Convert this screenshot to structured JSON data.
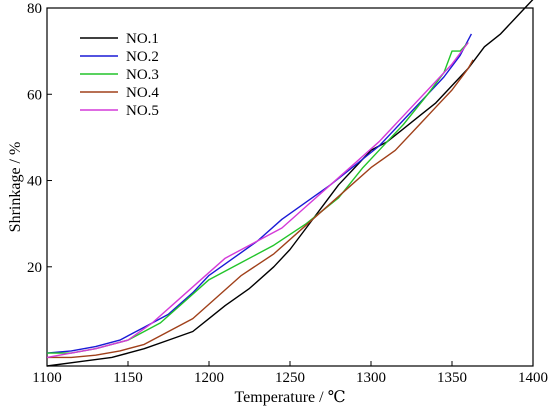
{
  "chart_data": {
    "type": "line",
    "xlabel": "Temperature / ℃",
    "ylabel": "Shrinkage / %",
    "xlim": [
      1100,
      1400
    ],
    "ylim": [
      -3,
      80
    ],
    "xticks": [
      1100,
      1150,
      1200,
      1250,
      1300,
      1350,
      1400
    ],
    "yticks": [
      20,
      40,
      60,
      80
    ],
    "legend_position": "top-left",
    "grid": false,
    "series": [
      {
        "name": "NO.1",
        "color": "#000000",
        "x": [
          1100,
          1120,
          1140,
          1150,
          1160,
          1175,
          1190,
          1200,
          1210,
          1225,
          1240,
          1250,
          1260,
          1270,
          1280,
          1290,
          1300,
          1310,
          1320,
          1330,
          1340,
          1350,
          1360,
          1370,
          1380,
          1390,
          1395,
          1400
        ],
        "y": [
          -3,
          -2,
          -1,
          0,
          1,
          3,
          5,
          8,
          11,
          15,
          20,
          24,
          29,
          34,
          39,
          43,
          47,
          49,
          52,
          55,
          58,
          62,
          66,
          71,
          74,
          78,
          80,
          82
        ]
      },
      {
        "name": "NO.2",
        "color": "#1a1ad6",
        "x": [
          1100,
          1115,
          1130,
          1145,
          1160,
          1175,
          1190,
          1200,
          1215,
          1230,
          1245,
          1260,
          1275,
          1285,
          1295,
          1305,
          1315,
          1325,
          1335,
          1345,
          1355,
          1362
        ],
        "y": [
          0,
          0.5,
          1.5,
          3,
          6,
          9,
          14,
          18,
          22,
          26,
          31,
          35,
          39,
          42,
          45,
          48,
          52,
          56,
          60,
          64,
          69,
          74
        ]
      },
      {
        "name": "NO.3",
        "color": "#22c42a",
        "x": [
          1100,
          1115,
          1130,
          1150,
          1170,
          1185,
          1200,
          1220,
          1240,
          1260,
          1280,
          1295,
          1305,
          1320,
          1335,
          1345,
          1350,
          1355,
          1360
        ],
        "y": [
          0,
          0,
          1,
          3,
          7,
          12,
          17,
          21,
          25,
          30,
          36,
          43,
          47,
          53,
          60,
          65,
          70,
          70,
          72
        ]
      },
      {
        "name": "NO.4",
        "color": "#a0401a",
        "x": [
          1100,
          1115,
          1130,
          1145,
          1160,
          1175,
          1190,
          1205,
          1220,
          1240,
          1255,
          1270,
          1285,
          1300,
          1315,
          1330,
          1340,
          1350,
          1360,
          1363
        ],
        "y": [
          -1,
          -1,
          -0.5,
          0.5,
          2,
          5,
          8,
          13,
          18,
          23,
          28,
          33,
          38,
          43,
          47,
          53,
          57,
          61,
          66,
          68
        ]
      },
      {
        "name": "NO.5",
        "color": "#d43ad8",
        "x": [
          1100,
          1115,
          1130,
          1150,
          1165,
          1180,
          1195,
          1210,
          1225,
          1245,
          1260,
          1275,
          1290,
          1305,
          1320,
          1335,
          1350,
          1360
        ],
        "y": [
          -1,
          0,
          1,
          3,
          7,
          12,
          17,
          22,
          25,
          29,
          34,
          39,
          44,
          49,
          55,
          61,
          67,
          72
        ]
      }
    ]
  }
}
